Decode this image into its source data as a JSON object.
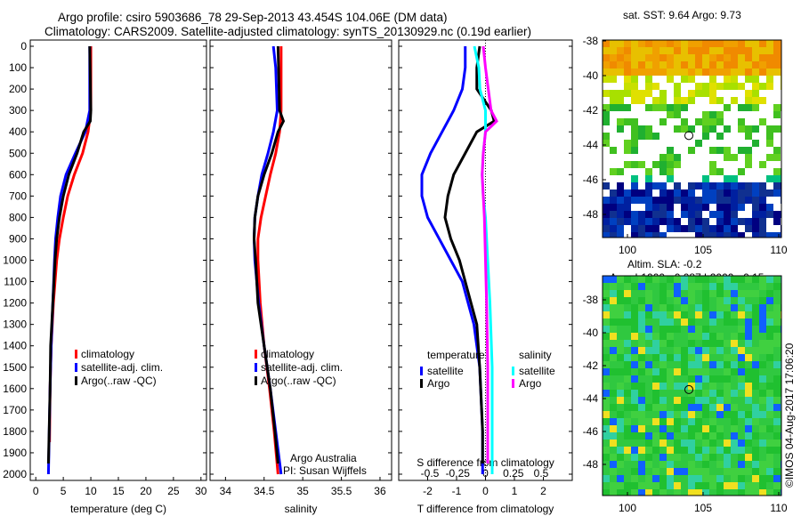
{
  "title_line1": "Argo profile: csiro 5903686_78 29-Sep-2013 43.454S 104.06E (DM data)",
  "title_line2": "Climatology: CARS2009. Satellite-adjusted climatology: synTS_20130929.nc (0.19d earlier)",
  "map1_title": "sat. SST: 9.64 Argo: 9.73",
  "map2_title1": "Altim. SLA: -0.2",
  "map2_title2": "Argo h1000: -0.087 h2000: -0.15",
  "timestamp": "©IMOS 04-Aug-2017 17:06:20",
  "credit1": "Argo Australia",
  "credit2": "PI: Susan Wijffels",
  "colors": {
    "climatology": "#ff0000",
    "satellite": "#0000ff",
    "argo": "#000000",
    "sal_satellite": "#00ffff",
    "sal_argo": "#ff00ff"
  },
  "chart_data": [
    {
      "type": "line",
      "xlabel": "temperature (deg C)",
      "ylabel": "depth",
      "xlim": [
        -1,
        31
      ],
      "ylim": [
        2050,
        0
      ],
      "xticks": [
        "0",
        "5",
        "10",
        "15",
        "20",
        "25",
        "30"
      ],
      "yticks": [
        "0",
        "100",
        "200",
        "300",
        "400",
        "500",
        "600",
        "700",
        "800",
        "900",
        "1000",
        "1100",
        "1200",
        "1300",
        "1400",
        "1500",
        "1600",
        "1700",
        "1800",
        "1900",
        "2000"
      ],
      "legend": [
        "climatology",
        "satellite-adj. clim.",
        "Argo(..raw -QC)"
      ],
      "series": [
        {
          "name": "climatology",
          "color": "#ff0000",
          "points": [
            [
              0,
              10
            ],
            [
              300,
              10
            ],
            [
              400,
              9.5
            ],
            [
              500,
              8.5
            ],
            [
              600,
              7
            ],
            [
              700,
              5.8
            ],
            [
              800,
              5
            ],
            [
              900,
              4.3
            ],
            [
              1000,
              3.8
            ],
            [
              1200,
              3.2
            ],
            [
              1400,
              2.8
            ],
            [
              1600,
              2.6
            ],
            [
              1850,
              2.5
            ]
          ]
        },
        {
          "name": "satellite-adj. clim.",
          "color": "#0000ff",
          "points": [
            [
              0,
              9.8
            ],
            [
              300,
              9.8
            ],
            [
              400,
              9
            ],
            [
              500,
              7.2
            ],
            [
              600,
              5.5
            ],
            [
              700,
              4.5
            ],
            [
              800,
              4
            ],
            [
              900,
              3.6
            ],
            [
              1000,
              3.4
            ],
            [
              1200,
              3.1
            ],
            [
              1400,
              2.8
            ],
            [
              1600,
              2.6
            ],
            [
              2000,
              2.3
            ]
          ]
        },
        {
          "name": "Argo",
          "color": "#000000",
          "points": [
            [
              0,
              9.8
            ],
            [
              300,
              10
            ],
            [
              350,
              9.9
            ],
            [
              400,
              8.7
            ],
            [
              500,
              7.5
            ],
            [
              600,
              6
            ],
            [
              700,
              5
            ],
            [
              800,
              4.3
            ],
            [
              900,
              3.8
            ],
            [
              1000,
              3.5
            ],
            [
              1200,
              3.1
            ],
            [
              1400,
              2.7
            ],
            [
              1600,
              2.6
            ],
            [
              1950,
              2.3
            ]
          ]
        }
      ]
    },
    {
      "type": "line",
      "xlabel": "salinity",
      "xlim": [
        33.8,
        36.15
      ],
      "ylim": [
        2050,
        0
      ],
      "xticks": [
        "34",
        "34.5",
        "35",
        "35.5",
        "36"
      ],
      "legend": [
        "climatology",
        "satellite-adj. clim.",
        "Argo(..raw -QC)"
      ],
      "series": [
        {
          "name": "climatology",
          "color": "#ff0000",
          "points": [
            [
              0,
              34.72
            ],
            [
              300,
              34.72
            ],
            [
              400,
              34.7
            ],
            [
              500,
              34.65
            ],
            [
              600,
              34.58
            ],
            [
              700,
              34.52
            ],
            [
              800,
              34.46
            ],
            [
              900,
              34.42
            ],
            [
              1000,
              34.42
            ],
            [
              1200,
              34.45
            ],
            [
              1400,
              34.5
            ],
            [
              1600,
              34.57
            ],
            [
              1800,
              34.63
            ],
            [
              2000,
              34.68
            ]
          ]
        },
        {
          "name": "satellite-adj. clim.",
          "color": "#0000ff",
          "points": [
            [
              0,
              34.62
            ],
            [
              100,
              34.65
            ],
            [
              300,
              34.67
            ],
            [
              400,
              34.62
            ],
            [
              500,
              34.55
            ],
            [
              600,
              34.47
            ],
            [
              700,
              34.42
            ],
            [
              800,
              34.38
            ],
            [
              900,
              34.37
            ],
            [
              1000,
              34.38
            ],
            [
              1200,
              34.43
            ],
            [
              1400,
              34.5
            ],
            [
              1600,
              34.58
            ],
            [
              1800,
              34.65
            ],
            [
              2000,
              34.72
            ]
          ]
        },
        {
          "name": "Argo",
          "color": "#000000",
          "points": [
            [
              0,
              34.68
            ],
            [
              300,
              34.7
            ],
            [
              350,
              34.75
            ],
            [
              400,
              34.68
            ],
            [
              500,
              34.6
            ],
            [
              600,
              34.5
            ],
            [
              700,
              34.42
            ],
            [
              800,
              34.38
            ],
            [
              900,
              34.37
            ],
            [
              1000,
              34.39
            ],
            [
              1200,
              34.42
            ],
            [
              1400,
              34.5
            ],
            [
              1600,
              34.58
            ],
            [
              1800,
              34.64
            ],
            [
              1950,
              34.68
            ]
          ]
        }
      ]
    },
    {
      "type": "line",
      "xlabel": "T difference from climatology",
      "xlabel_top": "S difference from climatology",
      "xlim": [
        -3,
        3
      ],
      "slim": [
        -0.78,
        0.78
      ],
      "ylim": [
        2050,
        0
      ],
      "xticks": [
        "-2",
        "-1",
        "0",
        "1",
        "2"
      ],
      "sticks": [
        "-0.5",
        "-0.25",
        "0",
        "0.25",
        "0.5"
      ],
      "legend_t_title": "temperature",
      "legend_s_title": "salinity",
      "legend": [
        "satellite",
        "Argo",
        "satellite",
        "Argo"
      ],
      "series": [
        {
          "name": "T satellite",
          "axis": "T",
          "color": "#0000ff",
          "points": [
            [
              0,
              -0.7
            ],
            [
              100,
              -0.7
            ],
            [
              200,
              -0.8
            ],
            [
              300,
              -1.1
            ],
            [
              400,
              -1.5
            ],
            [
              500,
              -1.9
            ],
            [
              600,
              -2.2
            ],
            [
              700,
              -2.2
            ],
            [
              800,
              -2.0
            ],
            [
              900,
              -1.6
            ],
            [
              1000,
              -1.2
            ],
            [
              1100,
              -0.8
            ],
            [
              1200,
              -0.6
            ],
            [
              1300,
              -0.4
            ],
            [
              1500,
              -0.2
            ],
            [
              1800,
              -0.1
            ],
            [
              2000,
              -0.1
            ]
          ]
        },
        {
          "name": "T Argo",
          "axis": "T",
          "color": "#000000",
          "points": [
            [
              0,
              -0.2
            ],
            [
              100,
              -0.3
            ],
            [
              200,
              -0.3
            ],
            [
              300,
              0.2
            ],
            [
              350,
              0.3
            ],
            [
              400,
              -0.3
            ],
            [
              500,
              -0.7
            ],
            [
              600,
              -1.1
            ],
            [
              700,
              -1.3
            ],
            [
              800,
              -1.4
            ],
            [
              900,
              -1.2
            ],
            [
              1000,
              -0.9
            ],
            [
              1100,
              -0.7
            ],
            [
              1200,
              -0.5
            ],
            [
              1300,
              -0.3
            ],
            [
              1500,
              -0.2
            ],
            [
              1800,
              -0.1
            ],
            [
              1950,
              -0.1
            ]
          ]
        },
        {
          "name": "S satellite",
          "axis": "S",
          "color": "#00ffff",
          "points": [
            [
              0,
              -0.1
            ],
            [
              100,
              -0.06
            ],
            [
              200,
              -0.05
            ],
            [
              300,
              0
            ],
            [
              400,
              0
            ],
            [
              500,
              -0.02
            ],
            [
              600,
              -0.03
            ],
            [
              700,
              -0.02
            ],
            [
              800,
              0
            ],
            [
              1000,
              0.02
            ],
            [
              1200,
              0.04
            ],
            [
              1500,
              0.06
            ],
            [
              2000,
              0.06
            ]
          ]
        },
        {
          "name": "S Argo",
          "axis": "S",
          "color": "#ff00ff",
          "points": [
            [
              0,
              -0.02
            ],
            [
              100,
              0
            ],
            [
              300,
              0.05
            ],
            [
              350,
              0.1
            ],
            [
              400,
              0
            ],
            [
              500,
              -0.02
            ],
            [
              600,
              -0.03
            ],
            [
              700,
              -0.02
            ],
            [
              800,
              -0.01
            ],
            [
              1000,
              0
            ],
            [
              1200,
              0.01
            ],
            [
              1500,
              0.02
            ],
            [
              1950,
              0.02
            ]
          ]
        }
      ]
    },
    {
      "type": "heatmap",
      "title": "sat. SST: 9.64 Argo: 9.73",
      "xticks": [
        "100",
        "105",
        "110"
      ],
      "yticks": [
        "-38",
        "-40",
        "-42",
        "-44",
        "-46",
        "-48"
      ],
      "marker": [
        104.06,
        -43.454
      ]
    },
    {
      "type": "heatmap",
      "title": "Altim. SLA: -0.2",
      "xticks": [
        "100",
        "105",
        "110"
      ],
      "yticks": [
        "-38",
        "-40",
        "-42",
        "-44",
        "-46",
        "-48"
      ],
      "marker": [
        104.06,
        -43.454
      ]
    }
  ]
}
